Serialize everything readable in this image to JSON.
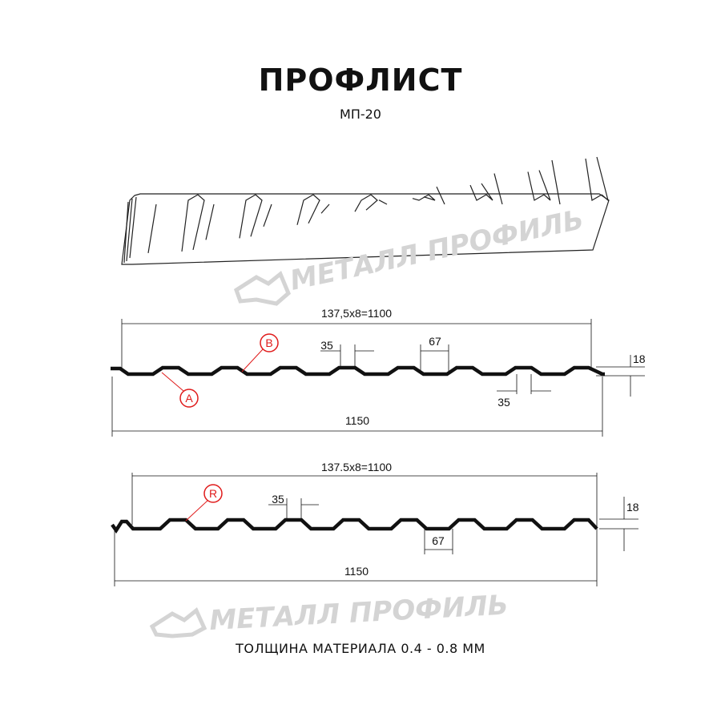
{
  "header": {
    "title": "ПРОФЛИСТ",
    "subtitle": "МП-20"
  },
  "watermark": {
    "text": "МЕТАЛЛ ПРОФИЛЬ"
  },
  "profile_a": {
    "pitch_label": "137,5x8=1100",
    "total_width_label": "1150",
    "rib_top_label": "35",
    "rib_bottom_label": "35",
    "valley_label": "67",
    "height_label": "18",
    "marker_a": "A",
    "marker_b": "B"
  },
  "profile_r": {
    "pitch_label": "137.5x8=1100",
    "total_width_label": "1150",
    "rib_top_label": "35",
    "valley_label": "67",
    "height_label": "18",
    "marker_r": "R"
  },
  "footer": {
    "thickness": "ТОЛЩИНА МАТЕРИАЛА 0.4 - 0.8 ММ"
  },
  "colors": {
    "line": "#111111",
    "marker": "#e01b1b",
    "watermark": "#d4d4d4"
  }
}
